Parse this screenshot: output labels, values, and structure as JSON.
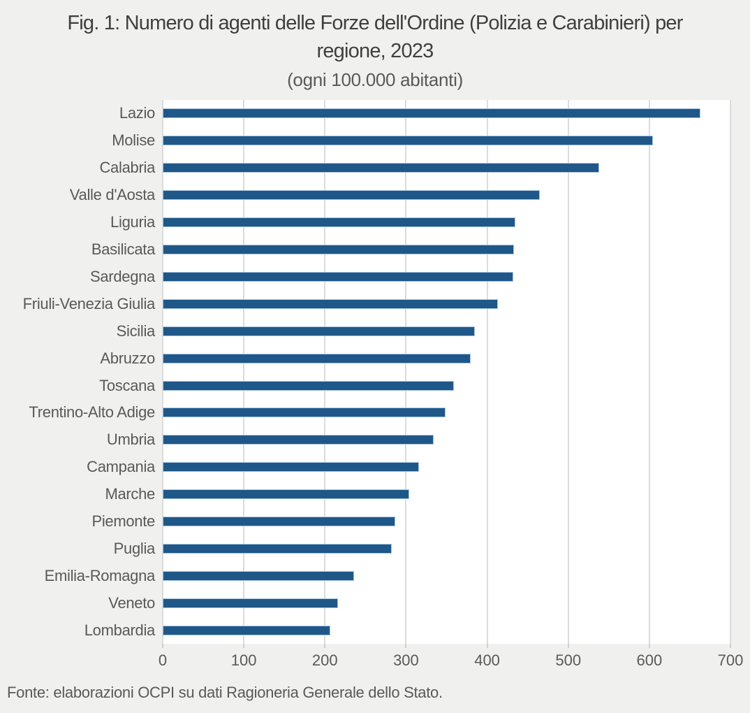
{
  "page": {
    "background": "#f0f0ef"
  },
  "chart_data": {
    "type": "bar",
    "orientation": "horizontal",
    "title_line1": "Fig. 1: Numero di agenti delle Forze dell'Ordine (Polizia e Carabinieri) per",
    "title_line2": "regione, 2023",
    "subtitle": "(ogni 100.000 abitanti)",
    "categories": [
      "Lazio",
      "Molise",
      "Calabria",
      "Valle d'Aosta",
      "Liguria",
      "Basilicata",
      "Sardegna",
      "Friuli-Venezia Giulia",
      "Sicilia",
      "Abruzzo",
      "Toscana",
      "Trentino-Alto Adige",
      "Umbria",
      "Campania",
      "Marche",
      "Piemonte",
      "Puglia",
      "Emilia-Romagna",
      "Veneto",
      "Lombardia"
    ],
    "values": [
      663,
      604,
      538,
      465,
      435,
      433,
      432,
      413,
      385,
      380,
      359,
      349,
      334,
      316,
      304,
      287,
      282,
      236,
      216,
      207
    ],
    "xlabel": "",
    "ylabel": "",
    "xlim": [
      0,
      700
    ],
    "x_ticks": [
      0,
      100,
      200,
      300,
      400,
      500,
      600,
      700
    ],
    "grid": true,
    "legend_position": "none",
    "colors": {
      "bar": "#1f5788",
      "bar_border": "#a9c6e0",
      "gridline": "#dcdcdc",
      "plot_background": "#ffffff",
      "page_background": "#f0f0ef",
      "title_text": "#3f3f3f",
      "axis_text": "#595959"
    },
    "source": "Fonte: elaborazioni OCPI su dati Ragioneria Generale dello Stato."
  }
}
